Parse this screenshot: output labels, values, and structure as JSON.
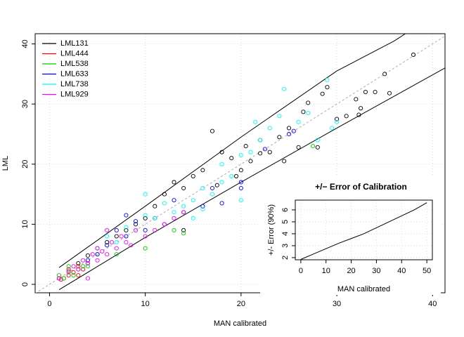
{
  "chart_data": [
    {
      "type": "scatter",
      "x_label": "MAN calibrated",
      "y_label": "LML",
      "xlim": [
        -1.5,
        41.3
      ],
      "ylim": [
        -1.4,
        41.7
      ],
      "xticks": [
        0,
        10,
        20,
        30,
        40
      ],
      "yticks": [
        0,
        10,
        20,
        30,
        40
      ],
      "grid": true,
      "legend": "top-left",
      "series": [
        {
          "name": "LML131",
          "color": "#000000",
          "x": [
            38,
            35,
            34,
            35.5,
            33,
            32,
            32.5,
            32.3,
            31,
            30,
            29,
            28.5,
            27,
            28,
            26.5,
            25,
            24,
            23,
            22,
            21,
            20.5,
            19,
            18,
            17,
            16,
            15,
            14,
            13,
            12,
            11,
            10,
            9,
            8,
            7,
            6,
            14,
            5,
            4,
            3,
            20,
            22,
            26,
            19.5,
            17.5,
            24.5
          ],
          "y": [
            38.2,
            35,
            32,
            31.8,
            32,
            30.8,
            29.3,
            28.2,
            28,
            27.5,
            32.8,
            31.7,
            30.2,
            22.8,
            28.7,
            26,
            24.5,
            22,
            24,
            20.5,
            23,
            21,
            22,
            25.5,
            19,
            18,
            16,
            17,
            15,
            13,
            11,
            10,
            9,
            8,
            7,
            9,
            6,
            4.8,
            3.5,
            19,
            21.8,
            22.8,
            18,
            16.5,
            20.5
          ]
        },
        {
          "name": "LML444",
          "color": "#ff0000",
          "x": [
            1,
            1.5,
            2,
            2.5,
            3,
            3.5,
            4,
            2,
            1.2,
            3
          ],
          "y": [
            1,
            1,
            1.5,
            2,
            3,
            2.5,
            3.5,
            2.5,
            0.8,
            1.5
          ]
        },
        {
          "name": "LML538",
          "color": "#00cd00",
          "x": [
            1,
            1.5,
            2,
            2.5,
            3,
            3.5,
            4,
            5,
            7,
            10,
            13,
            14,
            27.5,
            2
          ],
          "y": [
            1.5,
            1,
            2,
            1.5,
            2.5,
            3,
            3,
            5,
            5,
            6,
            9,
            8.5,
            23,
            3
          ]
        },
        {
          "name": "LML633",
          "color": "#0000ff",
          "x": [
            22.5,
            25,
            20,
            20,
            18,
            16,
            14,
            13,
            12,
            11,
            10,
            9,
            8,
            7,
            6,
            5,
            4,
            8,
            25.5,
            17
          ],
          "y": [
            22.5,
            25,
            17,
            16,
            13.5,
            13,
            12,
            14,
            10,
            11,
            9,
            10.5,
            8,
            9,
            6.5,
            5,
            4,
            11.5,
            25.5,
            16
          ]
        },
        {
          "name": "LML738",
          "color": "#00ffff",
          "x": [
            24.5,
            29,
            27,
            26,
            24,
            23,
            22,
            21,
            20,
            19,
            18,
            17,
            16,
            15,
            14,
            13,
            12,
            11,
            10,
            9,
            8,
            7,
            6,
            5,
            10,
            15,
            16,
            20,
            29.5,
            28,
            30,
            18,
            21.5
          ],
          "y": [
            32.5,
            34,
            28.5,
            27,
            28,
            26,
            24,
            22,
            21.5,
            18,
            17,
            15,
            16,
            14,
            13,
            12,
            13.5,
            11,
            11.5,
            9,
            9.5,
            7,
            8,
            6,
            15,
            11,
            12.5,
            14,
            26,
            24,
            27,
            20,
            27
          ]
        },
        {
          "name": "LML929",
          "color": "#ff00ff",
          "x": [
            1,
            2,
            2.5,
            3,
            3.5,
            4,
            4.5,
            5,
            5.5,
            6,
            6.5,
            7,
            7.5,
            8,
            8.5,
            9,
            10,
            11,
            12,
            13,
            14,
            4,
            6,
            5
          ],
          "y": [
            1,
            2.2,
            3,
            2.5,
            4,
            3.5,
            5,
            4,
            5.5,
            5,
            7,
            6,
            8,
            7,
            6.5,
            9,
            8,
            9,
            10,
            11,
            12,
            1,
            9,
            6
          ]
        }
      ],
      "lines": [
        {
          "color": "#000000",
          "x": [
            1,
            10,
            20,
            30,
            36,
            41.3
          ],
          "y": [
            2.8,
            13,
            24.5,
            35.5,
            40.5,
            46
          ]
        },
        {
          "color": "#000000",
          "x": [
            1,
            10,
            20,
            30,
            41.3
          ],
          "y": [
            -0.9,
            7.8,
            17,
            26,
            36
          ]
        },
        {
          "color": "#aaaaaa",
          "dashed": true,
          "x": [
            -1.5,
            41.3
          ],
          "y": [
            -1.5,
            41.3
          ]
        }
      ]
    },
    {
      "type": "line",
      "title": "+/− Error of Calibration",
      "x_label": "MAN calibrated",
      "y_label": "+/- Error (90%)",
      "xlim": [
        -2.2,
        52.2
      ],
      "ylim": [
        1.82,
        6.82
      ],
      "xticks": [
        0,
        10,
        20,
        30,
        40,
        50
      ],
      "yticks": [
        2,
        3,
        4,
        5,
        6
      ],
      "grid": true,
      "color": "#000000",
      "x": [
        0,
        5,
        10,
        15,
        20,
        25,
        30,
        35,
        40,
        45,
        50
      ],
      "y": [
        1.85,
        2.3,
        2.75,
        3.2,
        3.6,
        4.0,
        4.5,
        5.0,
        5.5,
        6.0,
        6.6
      ]
    }
  ]
}
